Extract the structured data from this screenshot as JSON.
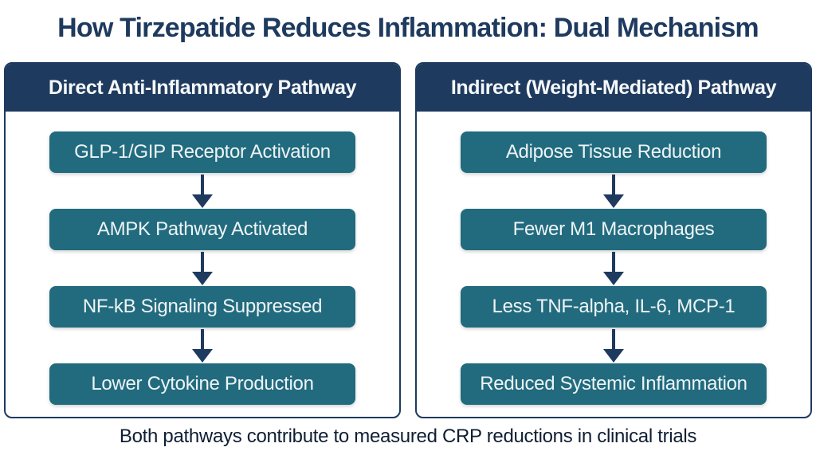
{
  "title": "How Tirzepatide Reduces Inflammation: Dual Mechanism",
  "footer": "Both pathways contribute to measured CRP reductions in clinical trials",
  "colors": {
    "navy": "#1e3a5e",
    "teal": "#226b7e",
    "background": "#ffffff",
    "box_text": "#eef4f6",
    "footer_text": "#0f1e33"
  },
  "panels": [
    {
      "header": "Direct Anti-Inflammatory Pathway",
      "steps": [
        "GLP-1/GIP Receptor Activation",
        "AMPK Pathway Activated",
        "NF-kB Signaling Suppressed",
        "Lower Cytokine Production"
      ]
    },
    {
      "header": "Indirect (Weight-Mediated) Pathway",
      "steps": [
        "Adipose Tissue Reduction",
        "Fewer M1 Macrophages",
        "Less TNF-alpha, IL-6, MCP-1",
        "Reduced Systemic Inflammation"
      ]
    }
  ]
}
